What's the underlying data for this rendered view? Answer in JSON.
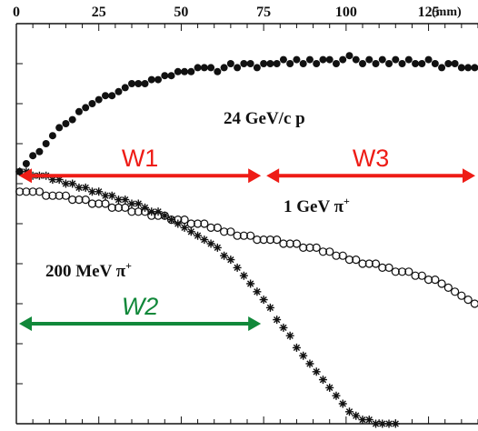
{
  "chart_data": {
    "type": "scatter",
    "x_axis": {
      "position": "top",
      "unit": "(mm)",
      "ticks": [
        "0",
        "25",
        "50",
        "75",
        "100",
        "125"
      ],
      "range": [
        0,
        140
      ]
    },
    "y_axis": {
      "range": [
        0,
        100
      ],
      "tick_labels": false
    },
    "series": [
      {
        "name": "24 GeV/c p",
        "label_main": "24 GeV/c p",
        "marker": "filled-circle",
        "points": [
          [
            1,
            63
          ],
          [
            3,
            65
          ],
          [
            5,
            67
          ],
          [
            7,
            68
          ],
          [
            9,
            70
          ],
          [
            11,
            72
          ],
          [
            13,
            74
          ],
          [
            15,
            75
          ],
          [
            17,
            76
          ],
          [
            19,
            78
          ],
          [
            21,
            79
          ],
          [
            23,
            80
          ],
          [
            25,
            81
          ],
          [
            27,
            82
          ],
          [
            29,
            82
          ],
          [
            31,
            83
          ],
          [
            33,
            84
          ],
          [
            35,
            85
          ],
          [
            37,
            85
          ],
          [
            39,
            85
          ],
          [
            41,
            86
          ],
          [
            43,
            86
          ],
          [
            45,
            87
          ],
          [
            47,
            87
          ],
          [
            49,
            88
          ],
          [
            51,
            88
          ],
          [
            53,
            88
          ],
          [
            55,
            89
          ],
          [
            57,
            89
          ],
          [
            59,
            89
          ],
          [
            61,
            88
          ],
          [
            63,
            89
          ],
          [
            65,
            90
          ],
          [
            67,
            89
          ],
          [
            69,
            90
          ],
          [
            71,
            90
          ],
          [
            73,
            89
          ],
          [
            75,
            90
          ],
          [
            77,
            90
          ],
          [
            79,
            90
          ],
          [
            81,
            91
          ],
          [
            83,
            90
          ],
          [
            85,
            91
          ],
          [
            87,
            90
          ],
          [
            89,
            91
          ],
          [
            91,
            90
          ],
          [
            93,
            91
          ],
          [
            95,
            91
          ],
          [
            97,
            90
          ],
          [
            99,
            91
          ],
          [
            101,
            92
          ],
          [
            103,
            91
          ],
          [
            105,
            90
          ],
          [
            107,
            91
          ],
          [
            109,
            90
          ],
          [
            111,
            91
          ],
          [
            113,
            90
          ],
          [
            115,
            91
          ],
          [
            117,
            90
          ],
          [
            119,
            91
          ],
          [
            121,
            90
          ],
          [
            123,
            90
          ],
          [
            125,
            91
          ],
          [
            127,
            90
          ],
          [
            129,
            89
          ],
          [
            131,
            90
          ],
          [
            133,
            90
          ],
          [
            135,
            89
          ],
          [
            137,
            89
          ],
          [
            139,
            89
          ]
        ]
      },
      {
        "name": "1 GeV π+",
        "label_main": "1 GeV π",
        "label_sup": "+",
        "marker": "open-circle",
        "points": [
          [
            1,
            58
          ],
          [
            3,
            58
          ],
          [
            5,
            58
          ],
          [
            7,
            58
          ],
          [
            9,
            57
          ],
          [
            11,
            57
          ],
          [
            13,
            57
          ],
          [
            15,
            57
          ],
          [
            17,
            56
          ],
          [
            19,
            56
          ],
          [
            21,
            56
          ],
          [
            23,
            55
          ],
          [
            25,
            55
          ],
          [
            27,
            55
          ],
          [
            29,
            54
          ],
          [
            31,
            54
          ],
          [
            33,
            54
          ],
          [
            35,
            53
          ],
          [
            37,
            53
          ],
          [
            39,
            53
          ],
          [
            41,
            52
          ],
          [
            43,
            52
          ],
          [
            45,
            52
          ],
          [
            47,
            51
          ],
          [
            49,
            51
          ],
          [
            51,
            51
          ],
          [
            53,
            50
          ],
          [
            55,
            50
          ],
          [
            57,
            50
          ],
          [
            59,
            49
          ],
          [
            61,
            49
          ],
          [
            63,
            48
          ],
          [
            65,
            48
          ],
          [
            67,
            47
          ],
          [
            69,
            47
          ],
          [
            71,
            47
          ],
          [
            73,
            46
          ],
          [
            75,
            46
          ],
          [
            77,
            46
          ],
          [
            79,
            46
          ],
          [
            81,
            45
          ],
          [
            83,
            45
          ],
          [
            85,
            45
          ],
          [
            87,
            44
          ],
          [
            89,
            44
          ],
          [
            91,
            44
          ],
          [
            93,
            43
          ],
          [
            95,
            43
          ],
          [
            97,
            42
          ],
          [
            99,
            42
          ],
          [
            101,
            41
          ],
          [
            103,
            41
          ],
          [
            105,
            40
          ],
          [
            107,
            40
          ],
          [
            109,
            40
          ],
          [
            111,
            39
          ],
          [
            113,
            39
          ],
          [
            115,
            38
          ],
          [
            117,
            38
          ],
          [
            119,
            38
          ],
          [
            121,
            37
          ],
          [
            123,
            37
          ],
          [
            125,
            36
          ],
          [
            127,
            36
          ],
          [
            129,
            35
          ],
          [
            131,
            34
          ],
          [
            133,
            33
          ],
          [
            135,
            32
          ],
          [
            137,
            31
          ],
          [
            139,
            30
          ]
        ]
      },
      {
        "name": "200 MeV π+",
        "label_main": "200 MeV π",
        "label_sup": "+",
        "marker": "asterisk",
        "points": [
          [
            1,
            63
          ],
          [
            3,
            63
          ],
          [
            5,
            62
          ],
          [
            7,
            62
          ],
          [
            9,
            62
          ],
          [
            11,
            61
          ],
          [
            13,
            61
          ],
          [
            15,
            60
          ],
          [
            17,
            60
          ],
          [
            19,
            59
          ],
          [
            21,
            59
          ],
          [
            23,
            58
          ],
          [
            25,
            58
          ],
          [
            27,
            57
          ],
          [
            29,
            57
          ],
          [
            31,
            56
          ],
          [
            33,
            56
          ],
          [
            35,
            55
          ],
          [
            37,
            55
          ],
          [
            39,
            54
          ],
          [
            41,
            53
          ],
          [
            43,
            53
          ],
          [
            45,
            52
          ],
          [
            47,
            51
          ],
          [
            49,
            50
          ],
          [
            51,
            49
          ],
          [
            53,
            48
          ],
          [
            55,
            47
          ],
          [
            57,
            46
          ],
          [
            59,
            45
          ],
          [
            61,
            44
          ],
          [
            63,
            42
          ],
          [
            65,
            41
          ],
          [
            67,
            39
          ],
          [
            69,
            37
          ],
          [
            71,
            35
          ],
          [
            73,
            33
          ],
          [
            75,
            31
          ],
          [
            77,
            29
          ],
          [
            79,
            26
          ],
          [
            81,
            24
          ],
          [
            83,
            22
          ],
          [
            85,
            19
          ],
          [
            87,
            17
          ],
          [
            89,
            15
          ],
          [
            91,
            13
          ],
          [
            93,
            11
          ],
          [
            95,
            9
          ],
          [
            97,
            7
          ],
          [
            99,
            5
          ],
          [
            101,
            3
          ],
          [
            103,
            2
          ],
          [
            105,
            1
          ],
          [
            107,
            1
          ],
          [
            109,
            0
          ],
          [
            111,
            0
          ],
          [
            113,
            0
          ],
          [
            115,
            0
          ]
        ]
      }
    ],
    "annotations": [
      {
        "text": "W1",
        "color": "#ee1c16",
        "x_range": [
          0,
          75
        ],
        "y": 62
      },
      {
        "text": "W3",
        "color": "#ee1c16",
        "x_range": [
          75,
          140
        ],
        "y": 62
      },
      {
        "text": "W2",
        "color": "#11883a",
        "x_range": [
          0,
          75
        ],
        "y": 25
      }
    ],
    "grid": false,
    "legend": "none"
  }
}
